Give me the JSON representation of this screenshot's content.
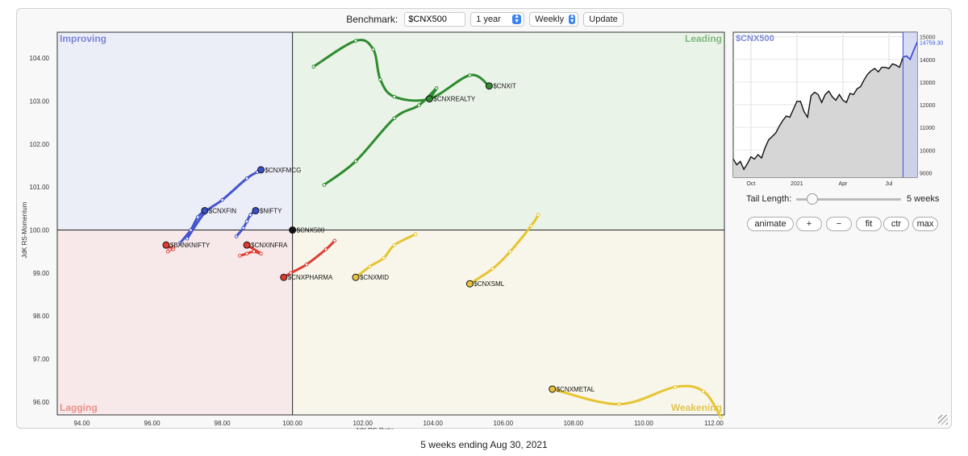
{
  "toolbar": {
    "benchmark_label": "Benchmark:",
    "benchmark_value": "$CNX500",
    "period": "1 year",
    "interval": "Weekly",
    "update_label": "Update"
  },
  "controls": {
    "tail_length_label": "Tail Length:",
    "tail_length_value": "5 weeks",
    "tail_fraction": 0.15,
    "buttons": [
      "animate",
      "+",
      "−",
      "fit",
      "ctr",
      "max"
    ]
  },
  "caption": "5 weeks ending Aug 30, 2021",
  "colors": {
    "improving": "#4455cc",
    "leading": "#2e8b2e",
    "weakening": "#e6c431",
    "lagging": "#e03c31"
  },
  "chart_data": [
    {
      "type": "scatter",
      "subtype": "relative-rotation-graph",
      "xlabel": "JdK RS-Ratio",
      "ylabel": "JdK RS-Momentum",
      "xlim": [
        93.3,
        112.3
      ],
      "ylim": [
        95.7,
        104.6
      ],
      "xticks": [
        "94.00",
        "96.00",
        "98.00",
        "100.00",
        "102.00",
        "104.00",
        "106.00",
        "108.00",
        "110.00",
        "112.00"
      ],
      "yticks": [
        "96.00",
        "97.00",
        "98.00",
        "99.00",
        "100.00",
        "101.00",
        "102.00",
        "103.00",
        "104.00"
      ],
      "center": [
        100,
        100
      ],
      "quadrants": [
        "Improving",
        "Leading",
        "Weakening",
        "Lagging"
      ],
      "series": [
        {
          "name": "$CNXIT",
          "color": "#2e8b2e",
          "points": [
            [
              100.6,
              103.8
            ],
            [
              101.8,
              104.4
            ],
            [
              102.3,
              104.2
            ],
            [
              102.5,
              103.5
            ],
            [
              102.9,
              103.1
            ],
            [
              103.9,
              103.05
            ],
            [
              105.05,
              103.6
            ],
            [
              105.6,
              103.35
            ]
          ]
        },
        {
          "name": "$CNXREALTY",
          "color": "#2e8b2e",
          "points": [
            [
              100.9,
              101.05
            ],
            [
              101.8,
              101.6
            ],
            [
              102.9,
              102.6
            ],
            [
              103.6,
              102.9
            ],
            [
              104.1,
              103.3
            ],
            [
              103.9,
              103.05
            ]
          ]
        },
        {
          "name": "$CNXFMCG",
          "color": "#4455cc",
          "points": [
            [
              97.0,
              99.8
            ],
            [
              97.5,
              100.4
            ],
            [
              98.0,
              100.7
            ],
            [
              98.7,
              101.2
            ],
            [
              99.0,
              101.35
            ],
            [
              99.1,
              101.4
            ]
          ]
        },
        {
          "name": "$CNXFIN",
          "color": "#4455cc",
          "points": [
            [
              96.8,
              99.7
            ],
            [
              97.1,
              100.0
            ],
            [
              97.3,
              100.3
            ],
            [
              97.5,
              100.45
            ]
          ]
        },
        {
          "name": "$NIFTY",
          "color": "#4455cc",
          "points": [
            [
              98.4,
              99.85
            ],
            [
              98.6,
              100.05
            ],
            [
              98.7,
              100.2
            ],
            [
              98.8,
              100.35
            ],
            [
              98.95,
              100.45
            ]
          ]
        },
        {
          "name": "$CNX500",
          "color": "#111111",
          "points": [
            [
              100.0,
              100.0
            ]
          ]
        },
        {
          "name": "$BANKNIFTY",
          "color": "#e03c31",
          "points": [
            [
              96.6,
              99.6
            ],
            [
              96.45,
              99.5
            ],
            [
              96.5,
              99.55
            ],
            [
              96.6,
              99.55
            ],
            [
              96.4,
              99.65
            ]
          ]
        },
        {
          "name": "$CNXINFRA",
          "color": "#e03c31",
          "points": [
            [
              98.5,
              99.4
            ],
            [
              98.7,
              99.45
            ],
            [
              98.9,
              99.5
            ],
            [
              99.1,
              99.45
            ],
            [
              98.7,
              99.65
            ]
          ]
        },
        {
          "name": "$CNXPHARMA",
          "color": "#e03c31",
          "points": [
            [
              101.2,
              99.75
            ],
            [
              100.95,
              99.55
            ],
            [
              100.4,
              99.2
            ],
            [
              99.95,
              99.0
            ],
            [
              99.75,
              98.9
            ]
          ]
        },
        {
          "name": "$CNXMID",
          "color": "#e6c431",
          "points": [
            [
              103.5,
              99.9
            ],
            [
              102.9,
              99.65
            ],
            [
              102.6,
              99.35
            ],
            [
              102.2,
              99.15
            ],
            [
              101.8,
              98.9
            ]
          ]
        },
        {
          "name": "$CNXSML",
          "color": "#e6c431",
          "points": [
            [
              107.0,
              100.35
            ],
            [
              106.8,
              100.1
            ],
            [
              106.2,
              99.5
            ],
            [
              105.7,
              99.1
            ],
            [
              105.05,
              98.75
            ]
          ]
        },
        {
          "name": "$CNXMETAL",
          "color": "#e6c431",
          "points": [
            [
              112.2,
              95.65
            ],
            [
              111.7,
              96.25
            ],
            [
              110.9,
              96.35
            ],
            [
              109.3,
              95.95
            ],
            [
              107.4,
              96.3
            ]
          ]
        }
      ]
    },
    {
      "type": "area",
      "title": "$CNX500",
      "xticks": [
        "Oct",
        "2021",
        "Apr",
        "Jul"
      ],
      "yticks": [
        "9000",
        "10000",
        "11000",
        "12000",
        "13000",
        "14000",
        "15000"
      ],
      "ylim": [
        8800,
        15200
      ],
      "last_value": "14759.30",
      "x": [
        "2020-08-31",
        "2020-09-07",
        "2020-09-14",
        "2020-09-21",
        "2020-09-28",
        "2020-10-05",
        "2020-10-12",
        "2020-10-19",
        "2020-10-26",
        "2020-11-02",
        "2020-11-09",
        "2020-11-16",
        "2020-11-23",
        "2020-11-30",
        "2020-12-07",
        "2020-12-14",
        "2020-12-21",
        "2020-12-28",
        "2021-01-04",
        "2021-01-11",
        "2021-01-18",
        "2021-01-25",
        "2021-02-01",
        "2021-02-08",
        "2021-02-15",
        "2021-02-22",
        "2021-03-01",
        "2021-03-08",
        "2021-03-15",
        "2021-03-22",
        "2021-03-29",
        "2021-04-05",
        "2021-04-12",
        "2021-04-19",
        "2021-04-26",
        "2021-05-03",
        "2021-05-10",
        "2021-05-17",
        "2021-05-24",
        "2021-05-31",
        "2021-06-07",
        "2021-06-14",
        "2021-06-21",
        "2021-06-28",
        "2021-07-05",
        "2021-07-12",
        "2021-07-19",
        "2021-07-26",
        "2021-08-02",
        "2021-08-09",
        "2021-08-16",
        "2021-08-23",
        "2021-08-30"
      ],
      "y": [
        9600,
        9350,
        9500,
        9150,
        9400,
        9700,
        9600,
        9800,
        9650,
        10100,
        10450,
        10600,
        10750,
        11050,
        11300,
        11500,
        11450,
        11800,
        12150,
        12150,
        11700,
        11450,
        12400,
        12550,
        12450,
        12100,
        12450,
        12600,
        12350,
        12200,
        12450,
        12200,
        12100,
        12500,
        12450,
        12700,
        12800,
        13100,
        13350,
        13500,
        13600,
        13450,
        13650,
        13650,
        13600,
        13800,
        13750,
        13650,
        14100,
        14150,
        14000,
        14400,
        14759
      ]
    }
  ]
}
